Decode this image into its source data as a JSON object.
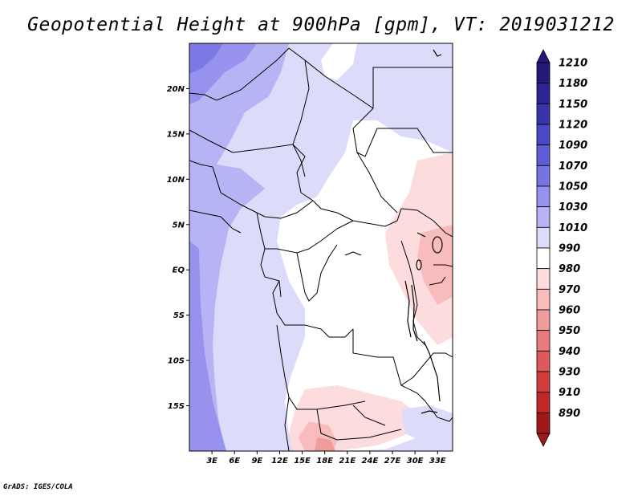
{
  "title": "Geopotential Height at 900hPa [gpm], VT: 2019031212",
  "credit": "GrADS: IGES/COLA",
  "map": {
    "lat_labels": [
      "20N",
      "15N",
      "10N",
      "5N",
      "EQ",
      "5S",
      "10S",
      "15S"
    ],
    "lon_labels": [
      "3E",
      "6E",
      "9E",
      "12E",
      "15E",
      "18E",
      "21E",
      "24E",
      "27E",
      "30E",
      "33E"
    ],
    "lon_range": [
      0,
      35
    ],
    "lat_range": [
      -20,
      25
    ]
  },
  "colorbar": {
    "levels": [
      {
        "value": "1210",
        "color": "#241878"
      },
      {
        "value": "1180",
        "color": "#2c2494"
      },
      {
        "value": "1150",
        "color": "#3a34ac"
      },
      {
        "value": "1120",
        "color": "#4a48c4"
      },
      {
        "value": "1090",
        "color": "#5e5cd6"
      },
      {
        "value": "1070",
        "color": "#7674e2"
      },
      {
        "value": "1050",
        "color": "#9692ee"
      },
      {
        "value": "1030",
        "color": "#b6b4f4"
      },
      {
        "value": "1010",
        "color": "#dcdcfa"
      },
      {
        "value": "990",
        "color": "#ffffff"
      },
      {
        "value": "980",
        "color": "#fcdcdc"
      },
      {
        "value": "970",
        "color": "#f8bcbc"
      },
      {
        "value": "960",
        "color": "#f09c9c"
      },
      {
        "value": "950",
        "color": "#e87c7c"
      },
      {
        "value": "940",
        "color": "#de5a5a"
      },
      {
        "value": "930",
        "color": "#d23c3c"
      },
      {
        "value": "910",
        "color": "#c02828"
      },
      {
        "value": "890",
        "color": "#a01818"
      }
    ]
  }
}
